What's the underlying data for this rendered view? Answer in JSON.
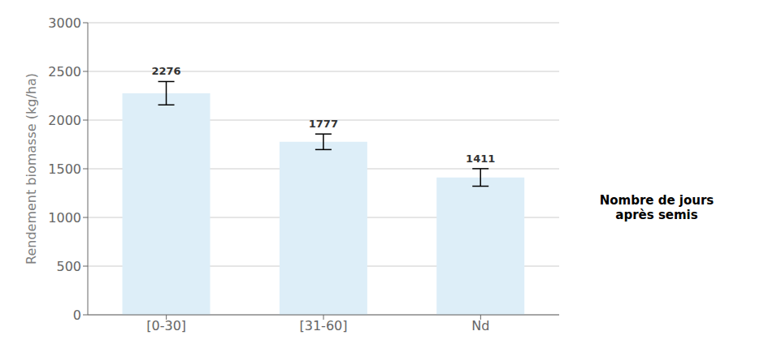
{
  "chart_data": {
    "type": "bar",
    "categories": [
      "[0-30]",
      "[31-60]",
      "Nd"
    ],
    "values": [
      2276,
      1777,
      1411
    ],
    "errors": [
      120,
      80,
      90
    ],
    "color": "#ddeef8",
    "ylabel": "Rendement biomasse (kg/ha)",
    "xlabel": "Nombre de jours\naprès semis",
    "ylim": [
      0,
      3000
    ],
    "yticks": [
      0,
      500,
      1000,
      1500,
      2000,
      2500,
      3000
    ],
    "grid": true,
    "data_labels": true
  }
}
